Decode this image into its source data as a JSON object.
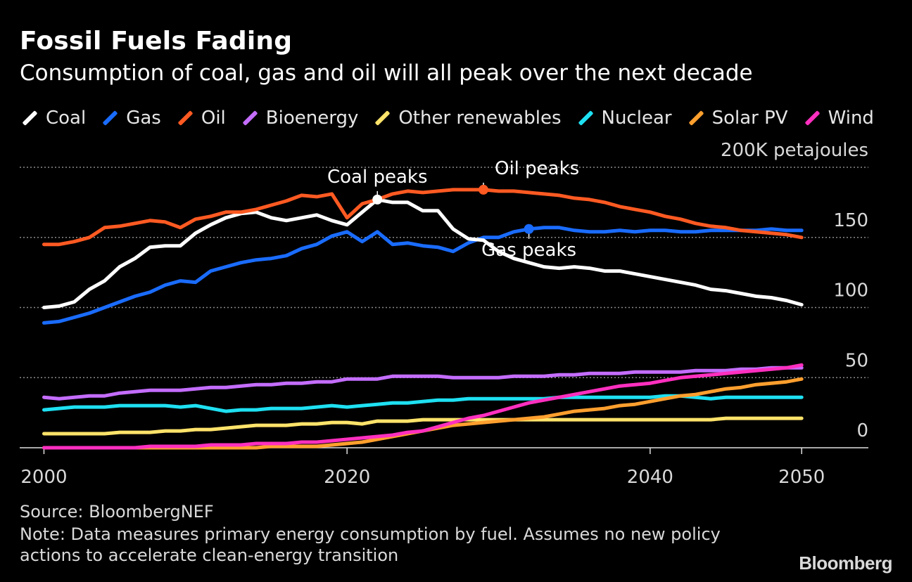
{
  "header": {
    "title": "Fossil Fuels Fading",
    "subtitle": "Consumption of coal, gas and oil will all peak over the next decade"
  },
  "footer": {
    "source": "Source: BloombergNEF",
    "note": "Note: Data measures primary energy consumption by fuel. Assumes no new policy actions to accelerate clean-energy transition",
    "brand": "Bloomberg"
  },
  "chart_data": {
    "type": "line",
    "title": "Fossil Fuels Fading",
    "subtitle": "Consumption of coal, gas and oil will all peak over the next decade",
    "unit_label": "200K petajoules",
    "x": [
      2000,
      2001,
      2002,
      2003,
      2004,
      2005,
      2006,
      2007,
      2008,
      2009,
      2010,
      2011,
      2012,
      2013,
      2014,
      2015,
      2016,
      2017,
      2018,
      2019,
      2020,
      2021,
      2022,
      2023,
      2024,
      2025,
      2026,
      2027,
      2028,
      2029,
      2030,
      2031,
      2032,
      2033,
      2034,
      2035,
      2036,
      2037,
      2038,
      2039,
      2040,
      2041,
      2042,
      2043,
      2044,
      2045,
      2046,
      2047,
      2048,
      2049,
      2050
    ],
    "xlim": [
      1998.4,
      2054.4
    ],
    "x_ticks": [
      2000,
      2020,
      2040,
      2050
    ],
    "ylim": [
      0,
      200
    ],
    "y_ticks": [
      0,
      50,
      100,
      150
    ],
    "y_tick_labels": [
      "0",
      "50",
      "100",
      "150"
    ],
    "top_label": "200K petajoules",
    "grid": "dotted horizontal",
    "legend_position": "top",
    "series": [
      {
        "name": "Coal",
        "color": "#ffffff",
        "values": [
          100,
          101,
          104,
          113,
          119,
          129,
          135,
          143,
          144,
          144,
          153,
          159,
          164,
          167,
          168,
          164,
          162,
          164,
          166,
          162,
          159,
          168,
          177,
          175,
          175,
          169,
          169,
          156,
          149,
          148,
          140,
          135,
          132,
          129,
          128,
          129,
          128,
          126,
          126,
          124,
          122,
          120,
          118,
          116,
          113,
          112,
          110,
          108,
          107,
          105,
          102
        ]
      },
      {
        "name": "Gas",
        "color": "#1a6cff",
        "values": [
          89,
          90,
          93,
          96,
          100,
          104,
          108,
          111,
          116,
          119,
          118,
          126,
          129,
          132,
          134,
          135,
          137,
          142,
          145,
          151,
          154,
          147,
          154,
          145,
          146,
          144,
          143,
          140,
          146,
          150,
          150,
          154,
          156,
          157,
          157,
          155,
          154,
          154,
          155,
          154,
          155,
          155,
          154,
          154,
          155,
          155,
          155,
          155,
          156,
          155,
          155
        ]
      },
      {
        "name": "Oil",
        "color": "#ff5a22",
        "values": [
          145,
          145,
          147,
          150,
          157,
          158,
          160,
          162,
          161,
          157,
          163,
          165,
          168,
          168,
          170,
          173,
          176,
          180,
          179,
          181,
          164,
          174,
          177,
          181,
          183,
          182,
          183,
          184,
          184,
          184,
          183,
          183,
          182,
          181,
          180,
          178,
          177,
          175,
          172,
          170,
          168,
          165,
          163,
          160,
          158,
          157,
          155,
          154,
          153,
          152,
          150
        ]
      },
      {
        "name": "Bioenergy",
        "color": "#c46dff",
        "values": [
          36,
          35,
          36,
          37,
          37,
          39,
          40,
          41,
          41,
          41,
          42,
          43,
          43,
          44,
          45,
          45,
          46,
          46,
          47,
          47,
          49,
          49,
          49,
          51,
          51,
          51,
          51,
          50,
          50,
          50,
          50,
          51,
          51,
          51,
          52,
          52,
          53,
          53,
          53,
          54,
          54,
          54,
          54,
          55,
          55,
          55,
          56,
          56,
          57,
          57,
          57
        ]
      },
      {
        "name": "Other renewables",
        "color": "#ffe36a",
        "values": [
          10,
          10,
          10,
          10,
          10,
          11,
          11,
          11,
          12,
          12,
          13,
          13,
          14,
          15,
          16,
          16,
          16,
          17,
          17,
          18,
          18,
          17,
          19,
          19,
          19,
          20,
          20,
          20,
          20,
          20,
          20,
          20,
          20,
          20,
          20,
          20,
          20,
          20,
          20,
          20,
          20,
          20,
          20,
          20,
          20,
          21,
          21,
          21,
          21,
          21,
          21
        ]
      },
      {
        "name": "Nuclear",
        "color": "#1ee0f2",
        "values": [
          27,
          28,
          29,
          29,
          29,
          30,
          30,
          30,
          30,
          29,
          30,
          28,
          26,
          27,
          27,
          28,
          28,
          28,
          29,
          30,
          29,
          30,
          31,
          32,
          32,
          33,
          34,
          34,
          35,
          35,
          35,
          35,
          35,
          35,
          36,
          36,
          36,
          36,
          36,
          36,
          36,
          37,
          37,
          36,
          35,
          36,
          36,
          36,
          36,
          36,
          36
        ]
      },
      {
        "name": "Solar PV",
        "color": "#ff9f2e",
        "values": [
          0,
          0,
          0,
          0,
          0,
          0,
          0,
          0,
          0,
          0,
          0,
          0,
          0,
          0,
          0,
          1,
          1,
          1,
          1,
          2,
          3,
          4,
          6,
          8,
          10,
          12,
          14,
          16,
          17,
          18,
          19,
          20,
          21,
          22,
          24,
          26,
          27,
          28,
          30,
          31,
          33,
          35,
          37,
          38,
          40,
          42,
          43,
          45,
          46,
          47,
          49
        ]
      },
      {
        "name": "Wind",
        "color": "#ff2fbf",
        "values": [
          0,
          0,
          0,
          0,
          0,
          0,
          0,
          1,
          1,
          1,
          1,
          2,
          2,
          2,
          3,
          3,
          3,
          4,
          4,
          5,
          6,
          7,
          8,
          9,
          11,
          12,
          15,
          18,
          21,
          23,
          26,
          29,
          32,
          34,
          36,
          38,
          40,
          42,
          44,
          45,
          46,
          48,
          50,
          51,
          52,
          53,
          54,
          55,
          56,
          57,
          59
        ]
      }
    ],
    "annotations": [
      {
        "text": "Coal peaks",
        "series": "Coal",
        "x": 2022,
        "y": 177
      },
      {
        "text": "Oil peaks",
        "series": "Oil",
        "x": 2029,
        "y": 184
      },
      {
        "text": "Gas peaks",
        "series": "Gas",
        "x": 2032,
        "y": 156
      }
    ]
  }
}
